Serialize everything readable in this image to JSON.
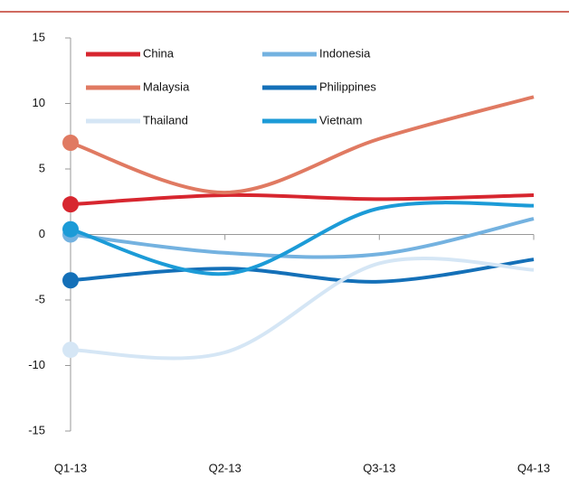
{
  "chart_data": {
    "type": "line",
    "categories": [
      "Q1-13",
      "Q2-13",
      "Q3-13",
      "Q4-13"
    ],
    "series": [
      {
        "name": "China",
        "color": "#d7262f",
        "values": [
          2.3,
          3.0,
          2.7,
          3.0
        ]
      },
      {
        "name": "Indonesia",
        "color": "#74b2e0",
        "values": [
          0,
          -1.4,
          -1.5,
          1.2
        ]
      },
      {
        "name": "Malaysia",
        "color": "#e07a62",
        "values": [
          7.0,
          3.2,
          7.3,
          10.5
        ]
      },
      {
        "name": "Philippines",
        "color": "#1470b8",
        "values": [
          -3.5,
          -2.6,
          -3.6,
          -1.9
        ]
      },
      {
        "name": "Thailand",
        "color": "#d5e6f5",
        "values": [
          -8.8,
          -9.0,
          -2.2,
          -2.7
        ]
      },
      {
        "name": "Vietnam",
        "color": "#1c9bd7",
        "values": [
          0.4,
          -3.0,
          2.0,
          2.2
        ]
      }
    ],
    "ylim": [
      -15,
      15
    ],
    "yticks": [
      -15,
      -10,
      -5,
      0,
      5,
      10,
      15
    ],
    "markers_on_first": true
  }
}
